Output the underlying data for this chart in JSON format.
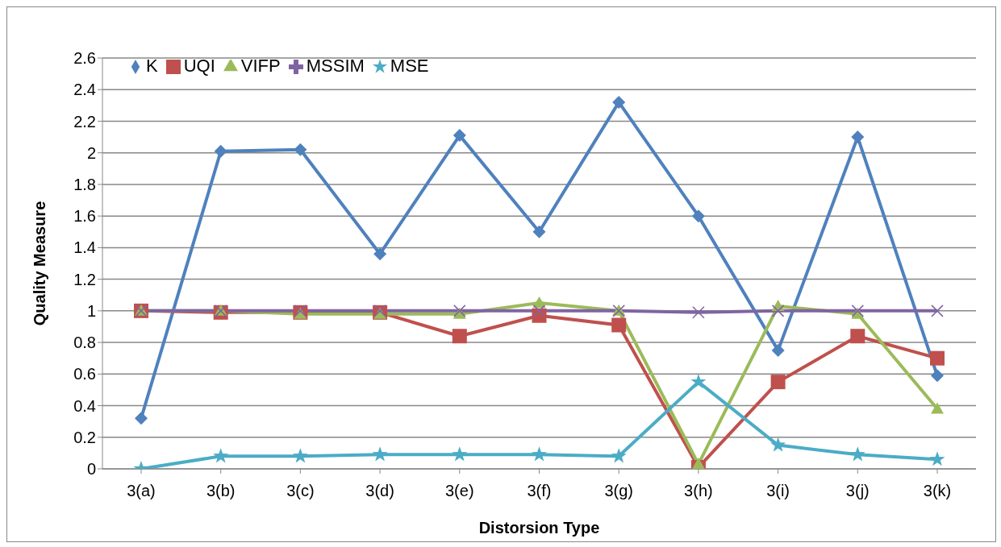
{
  "chart_data": {
    "type": "line",
    "xlabel": "Distorsion Type",
    "ylabel": "Quality Measure",
    "categories": [
      "3(a)",
      "3(b)",
      "3(c)",
      "3(d)",
      "3(e)",
      "3(f)",
      "3(g)",
      "3(h)",
      "3(i)",
      "3(j)",
      "3(k)"
    ],
    "series": [
      {
        "name": "K",
        "color": "#4f81bd",
        "marker": "diamond",
        "values": [
          0.32,
          2.01,
          2.02,
          1.36,
          2.11,
          1.5,
          2.32,
          1.6,
          0.75,
          2.1,
          0.59
        ]
      },
      {
        "name": "UQI",
        "color": "#c0504d",
        "marker": "square",
        "values": [
          1,
          0.99,
          0.99,
          0.99,
          0.84,
          0.97,
          0.91,
          0.01,
          0.55,
          0.84,
          0.7
        ]
      },
      {
        "name": "VIFP",
        "color": "#9bbb59",
        "marker": "triangle",
        "values": [
          1,
          1,
          0.98,
          0.98,
          0.98,
          1.05,
          1,
          0.03,
          1.03,
          0.98,
          0.38
        ]
      },
      {
        "name": "MSSIM",
        "color": "#8064a2",
        "marker": "cross",
        "values": [
          1,
          1,
          1,
          1,
          1,
          1,
          1,
          0.99,
          1,
          1,
          1
        ]
      },
      {
        "name": "MSE",
        "color": "#4bacc6",
        "marker": "star",
        "values": [
          0,
          0.08,
          0.08,
          0.09,
          0.09,
          0.09,
          0.08,
          0.55,
          0.15,
          0.09,
          0.06
        ]
      }
    ],
    "ylim": [
      0,
      2.6
    ],
    "yticks": [
      0,
      0.2,
      0.4,
      0.6,
      0.8,
      1,
      1.2,
      1.4,
      1.6,
      1.8,
      2,
      2.2,
      2.4,
      2.6
    ],
    "grid": "y",
    "legend": "top left",
    "line_style": "solid"
  }
}
